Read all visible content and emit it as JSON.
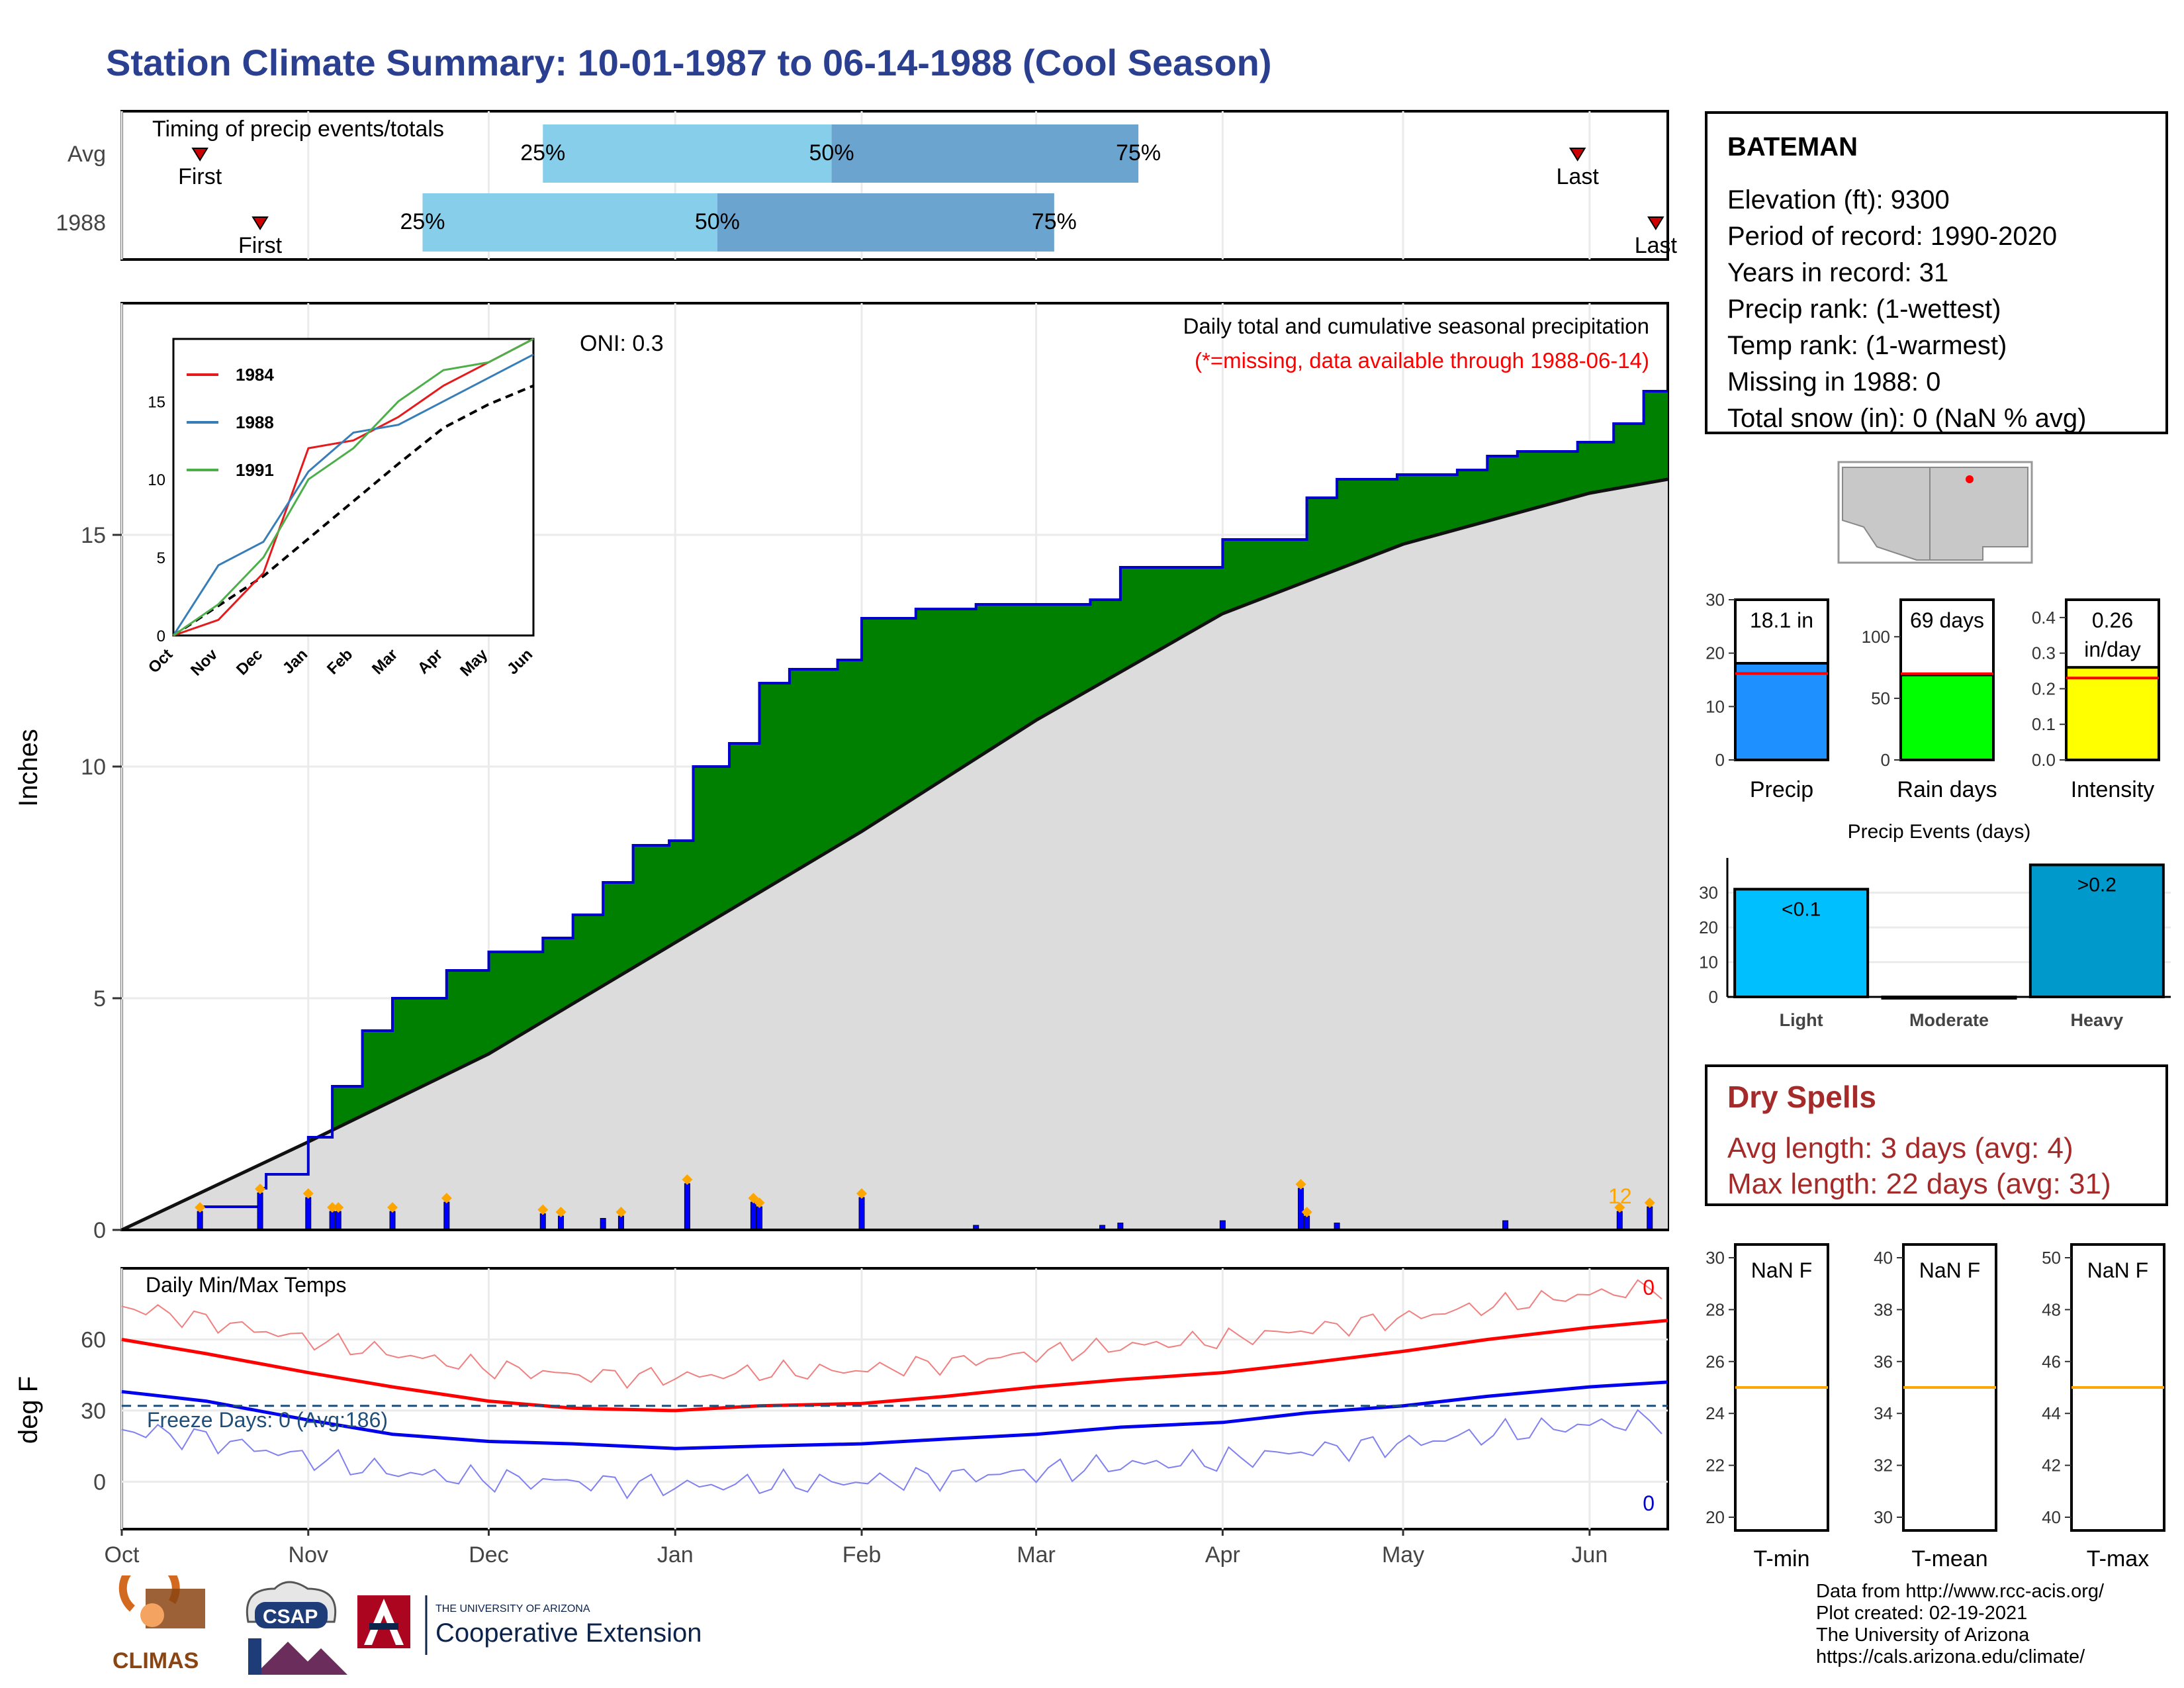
{
  "title": "Station Climate Summary: 10-01-1987 to 06-14-1988 (Cool Season)",
  "timing_panel": {
    "title": "Timing of precip events/totals",
    "rows": [
      {
        "label": "Avg",
        "first": "1987-10-14",
        "p25": "1987-12-10",
        "p50": "1988-01-27",
        "p75": "1988-03-18",
        "last": "1988-05-30",
        "first_label": "First",
        "last_label": "Last",
        "p25_label": "25%",
        "p50_label": "50%",
        "p75_label": "75%"
      },
      {
        "label": "1988",
        "first": "1987-10-24",
        "p25": "1987-11-20",
        "p50": "1988-01-08",
        "p75": "1988-03-04",
        "last": "1988-06-12",
        "first_label": "First",
        "last_label": "Last",
        "p25_label": "25%",
        "p50_label": "50%",
        "p75_label": "75%"
      }
    ]
  },
  "precip_panel": {
    "title": "Daily total and cumulative seasonal precipitation",
    "missing_note": "(*=missing, data available through 1988-06-14)",
    "oni": "ONI: 0.3",
    "ylabel": "Inches",
    "last_value_label": "12",
    "colors": {
      "above_avg": "#008000",
      "below_avg": "#8b5a14",
      "avg_fill": "#dcdcdc",
      "bars": "#0000ff",
      "outline": "#0000cc",
      "markers": "#ffa500"
    }
  },
  "temp_panel": {
    "title": "Daily Min/Max Temps",
    "ylabel": "deg F",
    "freeze_text": "Freeze Days: 0 (Avg:186)",
    "max_count_label": "0",
    "min_count_label": "0",
    "freeze_line": 32
  },
  "x_months": [
    "Oct",
    "Nov",
    "Dec",
    "Jan",
    "Feb",
    "Mar",
    "Apr",
    "May",
    "Jun"
  ],
  "inset": {
    "legend": [
      "1984",
      "1988",
      "1991"
    ],
    "months": [
      "Oct",
      "Nov",
      "Dec",
      "Jan",
      "Feb",
      "Mar",
      "Apr",
      "May",
      "Jun"
    ]
  },
  "station": {
    "name": "BATEMAN",
    "lines": [
      "Elevation (ft): 9300",
      "Period of record: 1990-2020",
      "Years in record: 31",
      "Precip rank:  (1-wettest)",
      "Temp rank:  (1-warmest)",
      "Missing in 1988: 0",
      "Total snow (in): 0 (NaN % avg)"
    ]
  },
  "summary_bars": [
    {
      "label": "Precip",
      "value_text": "18.1 in",
      "value": 18.1,
      "avg": 16.2,
      "ymax": 30,
      "ticks": [
        0,
        10,
        20,
        30
      ],
      "color": "#1e90ff"
    },
    {
      "label": "Rain days",
      "value_text": "69 days",
      "value": 69,
      "avg": 70,
      "ymax": 130,
      "ticks": [
        0,
        50,
        100
      ],
      "color": "#00ff00"
    },
    {
      "label": "Intensity",
      "value_text": "0.26 in/day",
      "value_text_1": "0.26",
      "value_text_2": "in/day",
      "value": 0.26,
      "avg": 0.23,
      "ymax": 0.45,
      "ticks": [
        "0.0",
        "0.1",
        "0.2",
        "0.3",
        "0.4"
      ],
      "color": "#ffff00"
    }
  ],
  "precip_events": {
    "title": "Precip Events (days)",
    "categories": [
      "Light",
      "Moderate",
      "Heavy"
    ],
    "values": [
      31,
      0,
      38
    ],
    "labels": [
      "<0.1",
      "",
      ">0.2"
    ],
    "ticks": [
      0,
      10,
      20,
      30
    ],
    "colors": [
      "#00bfff",
      "#1e90ff",
      "#0099cc"
    ]
  },
  "dry_spells": {
    "title": "Dry Spells",
    "avg_line": "Avg length: 3 days (avg: 4)",
    "max_line": "Max length: 22 days (avg: 31)"
  },
  "temp_boxes": [
    {
      "label": "T-min",
      "value_text": "NaN F",
      "ticks": [
        20,
        22,
        24,
        26,
        28,
        30
      ],
      "avg": 25
    },
    {
      "label": "T-mean",
      "value_text": "NaN F",
      "ticks": [
        30,
        32,
        34,
        36,
        38,
        40
      ],
      "avg": 35
    },
    {
      "label": "T-max",
      "value_text": "NaN F",
      "ticks": [
        40,
        42,
        44,
        46,
        48,
        50
      ],
      "avg": 45
    }
  ],
  "logos": {
    "climas": "CLIMAS",
    "csap": "CSAP",
    "ua_small": "THE UNIVERSITY OF ARIZONA",
    "ua_big": "Cooperative Extension"
  },
  "credits": [
    "Data from http://www.rcc-acis.org/",
    "Plot created: 02-19-2021",
    "The University of Arizona",
    "https://cals.arizona.edu/climate/"
  ],
  "chart_data": [
    {
      "type": "area",
      "title": "Daily total and cumulative seasonal precipitation",
      "ylabel": "Inches",
      "x_range": [
        "1987-10-01",
        "1988-06-14"
      ],
      "ylim": [
        0,
        20
      ],
      "series": [
        {
          "name": "1988",
          "x": [
            "1987-10-01",
            "1987-10-14",
            "1987-10-24",
            "1987-10-25",
            "1987-11-01",
            "1987-11-05",
            "1987-11-10",
            "1987-11-15",
            "1987-11-24",
            "1987-12-01",
            "1987-12-10",
            "1987-12-15",
            "1987-12-20",
            "1987-12-25",
            "1987-12-31",
            "1988-01-04",
            "1988-01-10",
            "1988-01-15",
            "1988-01-20",
            "1988-01-28",
            "1988-02-01",
            "1988-02-10",
            "1988-02-20",
            "1988-03-01",
            "1988-03-10",
            "1988-03-15",
            "1988-03-25",
            "1988-04-01",
            "1988-04-10",
            "1988-04-15",
            "1988-04-20",
            "1988-04-30",
            "1988-05-10",
            "1988-05-15",
            "1988-05-20",
            "1988-05-30",
            "1988-06-05",
            "1988-06-10",
            "1988-06-14"
          ],
          "values": [
            0.0,
            0.5,
            0.9,
            1.2,
            2.0,
            3.1,
            4.3,
            5.0,
            5.6,
            6.0,
            6.3,
            6.8,
            7.5,
            8.3,
            8.4,
            10.0,
            10.5,
            11.8,
            12.1,
            12.3,
            13.2,
            13.4,
            13.5,
            13.5,
            13.6,
            14.3,
            14.3,
            14.9,
            14.9,
            15.8,
            16.2,
            16.3,
            16.4,
            16.7,
            16.8,
            17.0,
            17.4,
            18.1,
            18.1
          ]
        },
        {
          "name": "avg",
          "x": [
            "1987-10-01",
            "1987-11-01",
            "1987-12-01",
            "1988-01-01",
            "1988-02-01",
            "1988-03-01",
            "1988-04-01",
            "1988-05-01",
            "1988-06-01",
            "1988-06-14"
          ],
          "values": [
            0.0,
            1.9,
            3.8,
            6.2,
            8.6,
            11.0,
            13.3,
            14.8,
            15.9,
            16.2
          ]
        }
      ],
      "daily_bars": {
        "x": [
          "1987-10-14",
          "1987-10-24",
          "1987-11-01",
          "1987-11-05",
          "1987-11-06",
          "1987-11-15",
          "1987-11-24",
          "1987-12-10",
          "1987-12-13",
          "1987-12-20",
          "1987-12-23",
          "1988-01-03",
          "1988-01-14",
          "1988-01-15",
          "1988-02-01",
          "1988-02-20",
          "1988-03-12",
          "1988-03-15",
          "1988-04-01",
          "1988-04-14",
          "1988-04-15",
          "1988-04-20",
          "1988-05-18",
          "1988-06-06",
          "1988-06-11"
        ],
        "values": [
          0.4,
          0.8,
          0.7,
          0.4,
          0.4,
          0.4,
          0.6,
          0.35,
          0.3,
          0.25,
          0.3,
          1.0,
          0.6,
          0.5,
          0.7,
          0.1,
          0.1,
          0.15,
          0.2,
          0.9,
          0.3,
          0.15,
          0.2,
          0.4,
          0.5
        ]
      }
    },
    {
      "type": "line",
      "title": "Daily Min/Max Temps",
      "ylabel": "deg F",
      "x_range": [
        "1987-10-01",
        "1988-06-14"
      ],
      "ylim": [
        -20,
        90
      ],
      "series": [
        {
          "name": "avg max",
          "x": [
            "1987-10-01",
            "1987-10-15",
            "1987-11-01",
            "1987-11-15",
            "1987-12-01",
            "1987-12-15",
            "1988-01-01",
            "1988-01-15",
            "1988-02-01",
            "1988-02-15",
            "1988-03-01",
            "1988-03-15",
            "1988-04-01",
            "1988-04-15",
            "1988-05-01",
            "1988-05-15",
            "1988-06-01",
            "1988-06-14"
          ],
          "values": [
            60,
            54,
            46,
            40,
            34,
            31,
            30,
            32,
            33,
            36,
            40,
            43,
            46,
            50,
            55,
            60,
            65,
            68
          ]
        },
        {
          "name": "avg min",
          "x": [
            "1987-10-01",
            "1987-10-15",
            "1987-11-01",
            "1987-11-15",
            "1987-12-01",
            "1987-12-15",
            "1988-01-01",
            "1988-01-15",
            "1988-02-01",
            "1988-02-15",
            "1988-03-01",
            "1988-03-15",
            "1988-04-01",
            "1988-04-15",
            "1988-05-01",
            "1988-05-15",
            "1988-06-01",
            "1988-06-14"
          ],
          "values": [
            38,
            34,
            26,
            20,
            17,
            16,
            14,
            15,
            16,
            18,
            20,
            23,
            25,
            29,
            32,
            36,
            40,
            42
          ]
        }
      ]
    },
    {
      "type": "line",
      "title": "",
      "x_range": [
        "Oct",
        "Jun"
      ],
      "ylim": [
        0,
        19
      ],
      "series": [
        {
          "name": "1984",
          "x": [
            "Oct",
            "Nov",
            "Dec",
            "Jan",
            "Feb",
            "Mar",
            "Apr",
            "May",
            "Jun"
          ],
          "values": [
            0,
            1,
            4,
            12,
            12.5,
            14,
            16,
            17.5,
            19
          ]
        },
        {
          "name": "1988",
          "x": [
            "Oct",
            "Nov",
            "Dec",
            "Jan",
            "Feb",
            "Mar",
            "Apr",
            "May",
            "Jun"
          ],
          "values": [
            0,
            4.5,
            6,
            10.5,
            13,
            13.5,
            15,
            16.5,
            18
          ]
        },
        {
          "name": "1991",
          "x": [
            "Oct",
            "Nov",
            "Dec",
            "Jan",
            "Feb",
            "Mar",
            "Apr",
            "May",
            "Jun"
          ],
          "values": [
            0,
            2,
            5,
            10,
            12,
            15,
            17,
            17.5,
            19
          ]
        }
      ]
    }
  ]
}
